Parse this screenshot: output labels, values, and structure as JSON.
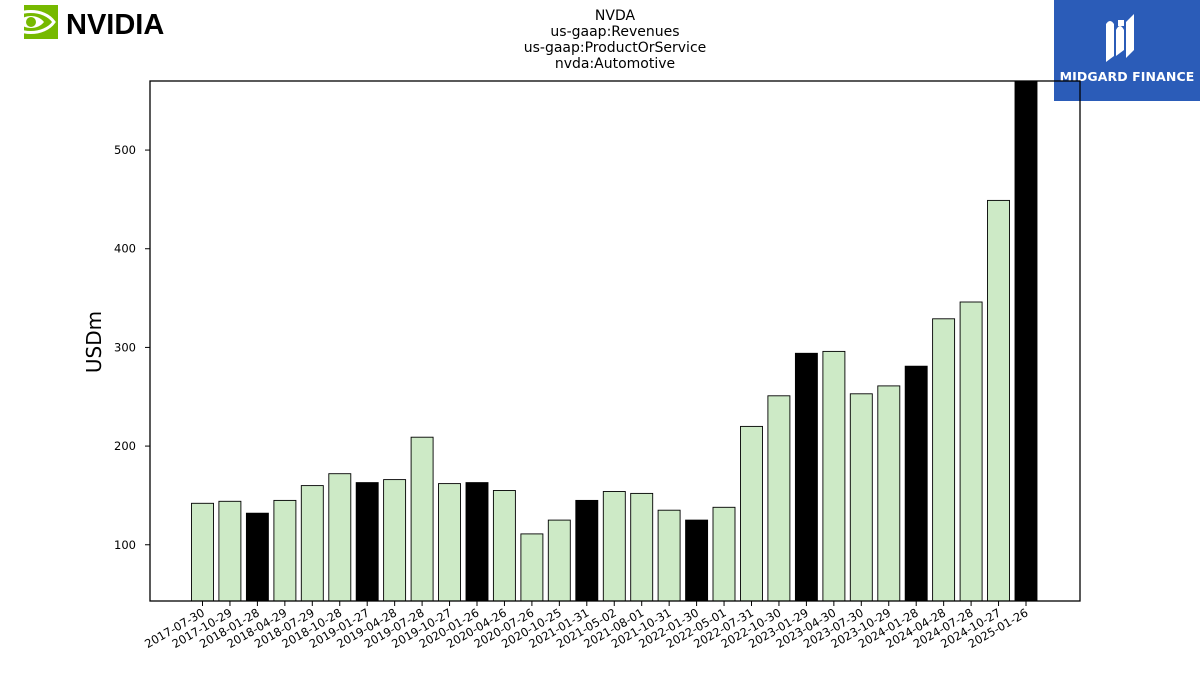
{
  "logos": {
    "left_wordmark": "NVIDIA",
    "right_brand": "MIDGARD FINANCE",
    "left_color": "#76b900",
    "right_color": "#2b5cb8"
  },
  "chart_data": {
    "type": "bar",
    "title": [
      "NVDA",
      "us-gaap:Revenues",
      "us-gaap:ProductOrService",
      "nvda:Automotive"
    ],
    "ylabel": "USDm",
    "xlabel": "",
    "ylim": [
      43,
      570
    ],
    "yticks": [
      100,
      200,
      300,
      400,
      500
    ],
    "grid": false,
    "categories": [
      "2017-07-30",
      "2017-10-29",
      "2018-01-28",
      "2018-04-29",
      "2018-07-29",
      "2018-10-28",
      "2019-01-27",
      "2019-04-28",
      "2019-07-28",
      "2019-10-27",
      "2020-01-26",
      "2020-04-26",
      "2020-07-26",
      "2020-10-25",
      "2021-01-31",
      "2021-05-02",
      "2021-08-01",
      "2021-10-31",
      "2022-01-30",
      "2022-05-01",
      "2022-07-31",
      "2022-10-30",
      "2023-01-29",
      "2023-04-30",
      "2023-07-30",
      "2023-10-29",
      "2024-01-28",
      "2024-04-28",
      "2024-07-28",
      "2024-10-27",
      "2025-01-26"
    ],
    "values": [
      142,
      144,
      132,
      145,
      160,
      172,
      163,
      166,
      209,
      162,
      163,
      155,
      111,
      125,
      145,
      154,
      152,
      135,
      125,
      138,
      220,
      251,
      294,
      296,
      253,
      261,
      281,
      329,
      346,
      449,
      570
    ],
    "highlight": [
      false,
      false,
      true,
      false,
      false,
      false,
      true,
      false,
      false,
      false,
      true,
      false,
      false,
      false,
      true,
      false,
      false,
      false,
      true,
      false,
      false,
      false,
      true,
      false,
      false,
      false,
      true,
      false,
      false,
      false,
      true
    ],
    "bar_color": "#cdeac6",
    "highlight_color": "#000000"
  }
}
